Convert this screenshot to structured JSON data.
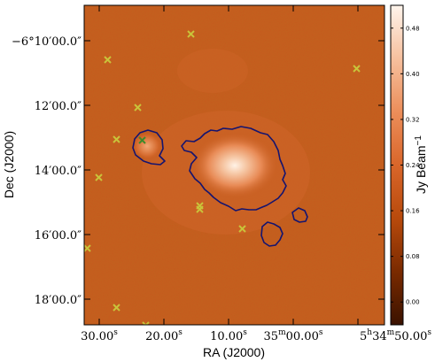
{
  "chart_data": {
    "type": "heatmap",
    "title": "",
    "xlabel": "RA (J2000)",
    "ylabel": "Dec (J2000)",
    "colorbar_label": "Jy Beam",
    "colorbar_label_exponent": "−1",
    "x_tick_labels": [
      {
        "main": "30.00",
        "sup": "s"
      },
      {
        "main": "20.00",
        "sup": "s"
      },
      {
        "main": "10.00",
        "sup": "s"
      },
      {
        "main": "35",
        "sup1": "m",
        "mid": "00.00",
        "sup": "s"
      },
      {
        "main": "5",
        "sup1": "h",
        "mid": "34",
        "sup2": "m",
        "end": "50.00",
        "sup": "s"
      }
    ],
    "y_tick_labels": [
      {
        "main": "−6°10′00.0″"
      },
      {
        "main": "12′00.0″"
      },
      {
        "main": "14′00.0″"
      },
      {
        "main": "16′00.0″"
      },
      {
        "main": "18′00.0″"
      }
    ],
    "colorbar": {
      "range": [
        -0.04,
        0.52
      ],
      "ticks": [
        0.0,
        0.08,
        0.16,
        0.24,
        0.32,
        0.4,
        0.48
      ],
      "tick_labels": [
        "0.00",
        "0.08",
        "0.16",
        "0.24",
        "0.32",
        "0.40",
        "0.48"
      ],
      "colors": [
        "#3a1200",
        "#7a2a00",
        "#b84a0c",
        "#d9662a",
        "#ec8e5a",
        "#f6c09e",
        "#fff4ec"
      ]
    },
    "background_level": 0.08,
    "contour_color": "#141470",
    "markers": {
      "symbol": "x",
      "colors": {
        "yellow": "#c9c33a",
        "green": "#3f8a2a"
      },
      "points": [
        {
          "ra_offset_s": 0.0,
          "dec": "-6:09:45",
          "color": "yellow"
        },
        {
          "ra_offset_s": 0.0,
          "dec": "-6:10:50",
          "color": "yellow"
        },
        {
          "ra_offset_s": 0.0,
          "dec": "-6:10:30",
          "color": "yellow"
        },
        {
          "ra_offset_s": 0.0,
          "dec": "-6:12:05",
          "color": "yellow"
        },
        {
          "ra_offset_s": 0.0,
          "dec": "-6:13:05",
          "color": "yellow"
        },
        {
          "ra_offset_s": 0.0,
          "dec": "-6:13:05",
          "color": "green"
        },
        {
          "ra_offset_s": 0.0,
          "dec": "-6:14:15",
          "color": "yellow"
        },
        {
          "ra_offset_s": 0.0,
          "dec": "-6:15:10",
          "color": "yellow"
        },
        {
          "ra_offset_s": 0.0,
          "dec": "-6:15:50",
          "color": "yellow"
        },
        {
          "ra_offset_s": 0.0,
          "dec": "-6:16:25",
          "color": "yellow"
        },
        {
          "ra_offset_s": 0.0,
          "dec": "-6:18:20",
          "color": "yellow"
        },
        {
          "ra_offset_s": 0.0,
          "dec": "-6:18:55",
          "color": "yellow"
        }
      ]
    }
  }
}
